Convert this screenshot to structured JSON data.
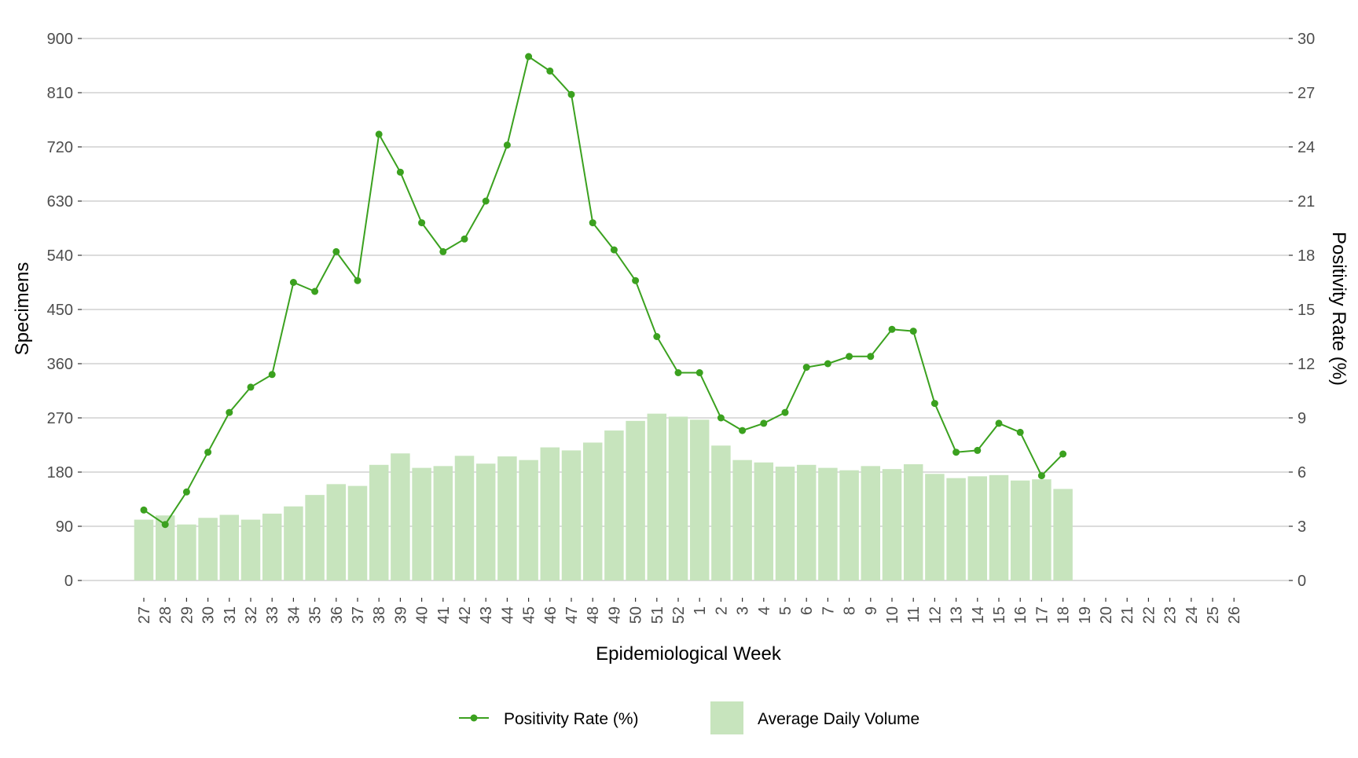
{
  "chart_data": {
    "type": "bar",
    "title": "",
    "xlabel": "Epidemiological Week",
    "ylabel": "Specimens",
    "y2label": "Positivity Rate (%)",
    "ylim": [
      0,
      900
    ],
    "y2lim": [
      0,
      30
    ],
    "yticks": [
      0,
      90,
      180,
      270,
      360,
      450,
      540,
      630,
      720,
      810,
      900
    ],
    "y2ticks": [
      0,
      3,
      6,
      9,
      12,
      15,
      18,
      21,
      24,
      27,
      30
    ],
    "grid": true,
    "legend_position": "bottom",
    "categories": [
      "27",
      "28",
      "29",
      "30",
      "31",
      "32",
      "33",
      "34",
      "35",
      "36",
      "37",
      "38",
      "39",
      "40",
      "41",
      "42",
      "43",
      "44",
      "45",
      "46",
      "47",
      "48",
      "49",
      "50",
      "51",
      "52",
      "1",
      "2",
      "3",
      "4",
      "5",
      "6",
      "7",
      "8",
      "9",
      "10",
      "11",
      "12",
      "13",
      "14",
      "15",
      "16",
      "17",
      "18",
      "19",
      "20",
      "21",
      "22",
      "23",
      "24",
      "25",
      "26"
    ],
    "series": [
      {
        "name": "Average Daily Volume",
        "type": "bar",
        "axis": "left",
        "color": "#c7e4bd",
        "values": [
          101,
          108,
          93,
          104,
          109,
          101,
          111,
          123,
          142,
          160,
          157,
          192,
          211,
          187,
          190,
          207,
          194,
          206,
          200,
          221,
          216,
          229,
          249,
          265,
          277,
          272,
          267,
          224,
          200,
          196,
          189,
          192,
          187,
          183,
          190,
          185,
          193,
          177,
          170,
          173,
          175,
          166,
          168,
          152,
          null,
          null,
          null,
          null,
          null,
          null,
          null,
          null
        ]
      },
      {
        "name": "Positivity Rate (%)",
        "type": "line",
        "axis": "right",
        "color": "#3ba11f",
        "values": [
          3.9,
          3.1,
          4.9,
          7.1,
          9.3,
          10.7,
          11.4,
          16.5,
          16.0,
          18.2,
          16.6,
          24.7,
          22.6,
          19.8,
          18.2,
          18.9,
          21.0,
          24.1,
          29.0,
          28.2,
          26.9,
          19.8,
          18.3,
          16.6,
          13.5,
          11.5,
          11.5,
          9.0,
          8.3,
          8.7,
          9.3,
          11.8,
          12.0,
          12.4,
          12.4,
          13.9,
          13.8,
          9.8,
          7.1,
          7.2,
          8.7,
          8.2,
          5.8,
          7.0,
          null,
          null,
          null,
          null,
          null,
          null,
          null,
          null
        ]
      }
    ]
  }
}
